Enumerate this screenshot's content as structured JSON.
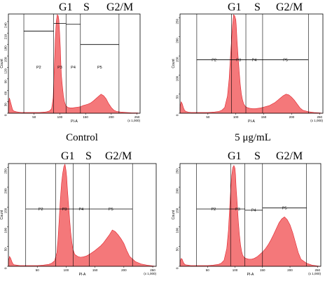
{
  "figure": {
    "phase_labels": [
      "G1",
      "S",
      "G2/M"
    ],
    "x_axis_label": "PI-A",
    "y_axis_label": "Count",
    "x_ticks": [
      "50",
      "100",
      "150",
      "200",
      "250"
    ],
    "x_multiplier": "(x 1,000)",
    "gate_labels": [
      "P2",
      "P3",
      "P4",
      "P5"
    ]
  },
  "chart_data": [
    {
      "type": "area",
      "caption": "Control",
      "xlabel": "PI-A",
      "ylabel": "Count",
      "xlim": [
        0,
        256
      ],
      "ylim": [
        0,
        260
      ],
      "y_ticks": [
        0,
        30,
        60,
        90,
        120,
        150,
        180,
        210,
        240
      ],
      "gates": [
        {
          "name": "P2",
          "x": [
            30,
            88
          ],
          "level": 215
        },
        {
          "name": "P3",
          "x": [
            88,
            112
          ],
          "level": 235
        },
        {
          "name": "P4",
          "x": [
            112,
            140
          ],
          "level": 233
        },
        {
          "name": "P5",
          "x": [
            140,
            215
          ],
          "level": 180
        }
      ],
      "x": [
        0,
        2,
        4,
        6,
        8,
        10,
        15,
        20,
        25,
        30,
        40,
        50,
        60,
        70,
        75,
        80,
        84,
        87,
        89,
        91,
        93,
        95,
        97,
        98,
        99,
        100,
        101,
        102,
        103,
        105,
        107,
        109,
        111,
        113,
        116,
        120,
        125,
        130,
        135,
        140,
        145,
        150,
        155,
        160,
        165,
        170,
        175,
        180,
        185,
        190,
        195,
        200,
        205,
        210,
        220,
        230,
        240,
        250,
        256
      ],
      "y": [
        20,
        40,
        30,
        20,
        10,
        6,
        4,
        3,
        2,
        2,
        2,
        2,
        2,
        3,
        4,
        6,
        12,
        40,
        110,
        190,
        240,
        258,
        255,
        245,
        225,
        200,
        170,
        130,
        100,
        70,
        45,
        30,
        22,
        18,
        15,
        14,
        14,
        15,
        16,
        17,
        20,
        22,
        24,
        27,
        32,
        38,
        44,
        50,
        46,
        38,
        25,
        15,
        8,
        5,
        3,
        2,
        1,
        1,
        0
      ]
    },
    {
      "type": "area",
      "caption": "5 μg/mL",
      "xlabel": "PI-A",
      "ylabel": "Count",
      "xlim": [
        0,
        256
      ],
      "ylim": [
        0,
        260
      ],
      "y_ticks": [
        0,
        50,
        100,
        150,
        200,
        250
      ],
      "gates": [
        {
          "name": "P2",
          "x": [
            30,
            92
          ],
          "level": 140
        },
        {
          "name": "P3",
          "x": [
            92,
            118
          ],
          "level": 140
        },
        {
          "name": "P4",
          "x": [
            118,
            148
          ],
          "level": 140
        },
        {
          "name": "P5",
          "x": [
            148,
            230
          ],
          "level": 140
        }
      ],
      "x": [
        0,
        2,
        4,
        6,
        8,
        10,
        15,
        20,
        25,
        30,
        40,
        50,
        60,
        70,
        75,
        80,
        85,
        88,
        90,
        92,
        94,
        96,
        98,
        100,
        101,
        102,
        104,
        106,
        108,
        110,
        112,
        114,
        117,
        120,
        125,
        130,
        135,
        140,
        145,
        150,
        155,
        160,
        165,
        170,
        175,
        180,
        185,
        190,
        195,
        200,
        205,
        210,
        215,
        220,
        230,
        240,
        250,
        256
      ],
      "y": [
        15,
        30,
        25,
        15,
        8,
        5,
        3,
        2,
        2,
        2,
        2,
        2,
        3,
        5,
        8,
        15,
        45,
        90,
        140,
        185,
        230,
        258,
        255,
        245,
        225,
        195,
        150,
        110,
        75,
        50,
        35,
        25,
        18,
        15,
        13,
        12,
        12,
        13,
        14,
        16,
        18,
        20,
        24,
        28,
        34,
        40,
        46,
        50,
        48,
        42,
        34,
        24,
        14,
        8,
        4,
        2,
        1,
        0
      ]
    },
    {
      "type": "area",
      "caption": "",
      "xlabel": "PI-A",
      "ylabel": "Count",
      "xlim": [
        0,
        256
      ],
      "ylim": [
        0,
        260
      ],
      "y_ticks": [
        0,
        50,
        100,
        150,
        200,
        250
      ],
      "gates": [
        {
          "name": "P2",
          "x": [
            30,
            82
          ],
          "level": 145
        },
        {
          "name": "P3",
          "x": [
            82,
            112
          ],
          "level": 145
        },
        {
          "name": "P4",
          "x": [
            112,
            140
          ],
          "level": 145
        },
        {
          "name": "P5",
          "x": [
            140,
            215
          ],
          "level": 145
        }
      ],
      "x": [
        0,
        2,
        4,
        6,
        8,
        10,
        15,
        20,
        25,
        30,
        40,
        50,
        60,
        70,
        75,
        80,
        84,
        86,
        88,
        90,
        92,
        94,
        96,
        98,
        99,
        100,
        101,
        102,
        104,
        106,
        108,
        110,
        112,
        115,
        120,
        125,
        130,
        135,
        140,
        145,
        150,
        155,
        160,
        165,
        170,
        175,
        180,
        185,
        190,
        195,
        200,
        205,
        210,
        220,
        230,
        240,
        250,
        256
      ],
      "y": [
        12,
        25,
        20,
        12,
        6,
        4,
        3,
        2,
        2,
        2,
        2,
        2,
        3,
        5,
        8,
        14,
        35,
        70,
        120,
        170,
        210,
        235,
        252,
        258,
        250,
        240,
        225,
        200,
        160,
        120,
        85,
        60,
        42,
        30,
        25,
        23,
        24,
        26,
        30,
        35,
        40,
        46,
        52,
        60,
        70,
        80,
        92,
        88,
        80,
        70,
        58,
        40,
        25,
        12,
        6,
        3,
        1,
        0
      ]
    },
    {
      "type": "area",
      "caption": "",
      "xlabel": "PI-A",
      "ylabel": "Count",
      "xlim": [
        0,
        256
      ],
      "ylim": [
        0,
        260
      ],
      "y_ticks": [
        0,
        50,
        100,
        150,
        200,
        250
      ],
      "gates": [
        {
          "name": "P2",
          "x": [
            30,
            92
          ],
          "level": 145
        },
        {
          "name": "P3",
          "x": [
            92,
            118
          ],
          "level": 145
        },
        {
          "name": "P4",
          "x": [
            118,
            150
          ],
          "level": 142
        },
        {
          "name": "P5",
          "x": [
            150,
            230
          ],
          "level": 148
        }
      ],
      "x": [
        0,
        2,
        4,
        6,
        8,
        10,
        15,
        20,
        25,
        30,
        40,
        50,
        60,
        70,
        75,
        80,
        85,
        88,
        90,
        92,
        94,
        96,
        98,
        100,
        101,
        102,
        104,
        106,
        108,
        110,
        112,
        114,
        117,
        120,
        125,
        130,
        135,
        140,
        145,
        150,
        155,
        160,
        165,
        170,
        175,
        180,
        185,
        190,
        195,
        200,
        205,
        210,
        215,
        220,
        230,
        240,
        250,
        256
      ],
      "y": [
        10,
        20,
        18,
        10,
        6,
        4,
        3,
        2,
        2,
        2,
        2,
        2,
        3,
        5,
        8,
        15,
        45,
        90,
        140,
        190,
        230,
        250,
        255,
        248,
        230,
        200,
        160,
        115,
        80,
        55,
        38,
        28,
        22,
        20,
        18,
        18,
        20,
        24,
        30,
        36,
        44,
        54,
        66,
        80,
        95,
        110,
        120,
        125,
        118,
        105,
        85,
        60,
        35,
        18,
        8,
        3,
        1,
        0
      ]
    }
  ],
  "captions": [
    "Control",
    "5 μg/mL"
  ]
}
